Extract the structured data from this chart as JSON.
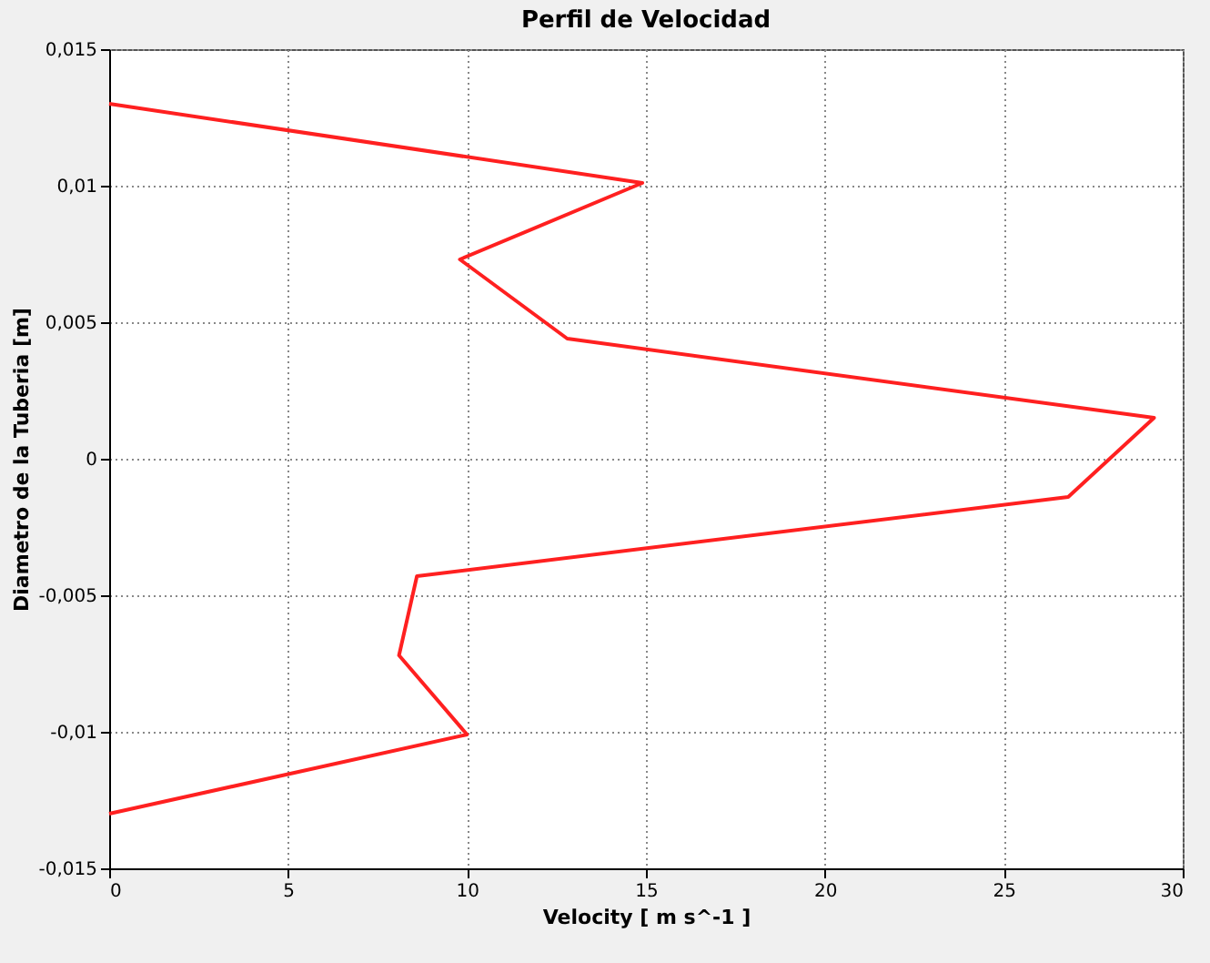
{
  "chart_data": {
    "type": "line",
    "title": "Perfil de Velocidad",
    "xlabel": "Velocity [ m s^-1 ]",
    "ylabel": "Diametro de la Tuberia [m]",
    "series": [
      {
        "color": "#ff2020",
        "x": [
          0,
          14.9,
          9.8,
          12.8,
          29.2,
          26.8,
          8.6,
          8.1,
          10,
          0
        ],
        "values": [
          0.013,
          0.0101,
          0.0073,
          0.0044,
          0.0015,
          -0.0014,
          -0.0043,
          -0.0072,
          -0.0101,
          -0.013
        ]
      }
    ],
    "xlim": [
      0,
      30
    ],
    "xticks": [
      0,
      5,
      10,
      15,
      20,
      25,
      30
    ],
    "ylim": [
      -0.015,
      0.015
    ],
    "yticks": [
      {
        "value": -0.015,
        "label": "-0,015"
      },
      {
        "value": -0.01,
        "label": "-0,01"
      },
      {
        "value": -0.005,
        "label": "-0,005"
      },
      {
        "value": 0,
        "label": "0"
      },
      {
        "value": 0.005,
        "label": "0,005"
      },
      {
        "value": 0.01,
        "label": "0,01"
      },
      {
        "value": 0.015,
        "label": "0,015"
      }
    ],
    "grid": true,
    "legend": false,
    "marker": "none",
    "line_style": "solid"
  }
}
